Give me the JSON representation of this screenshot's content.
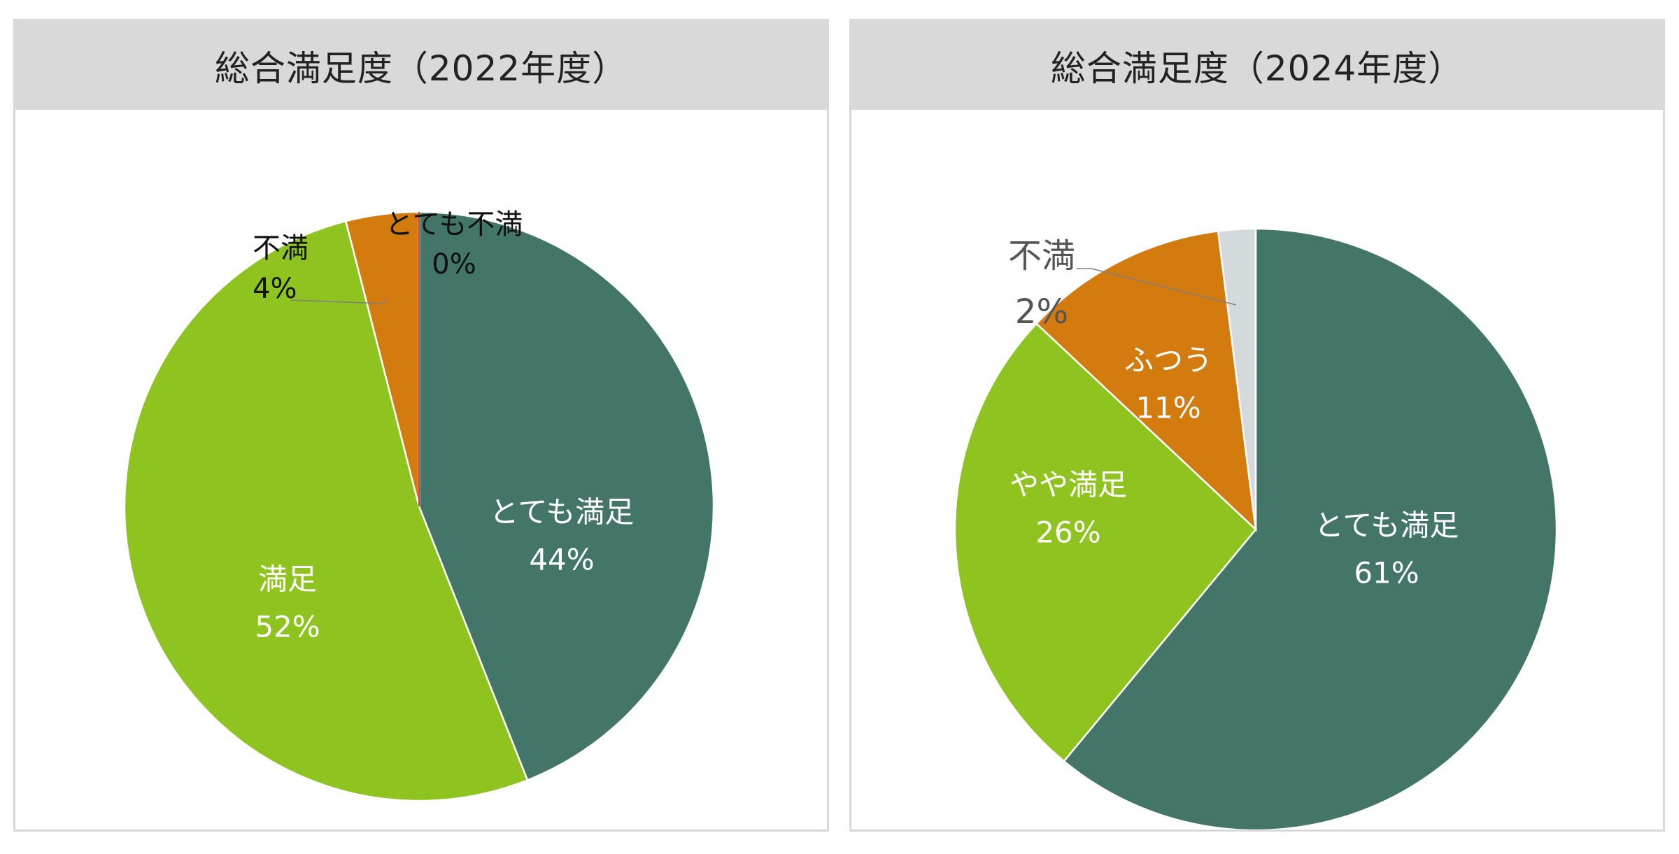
{
  "chart_data": [
    {
      "type": "pie",
      "title": "総合満足度（2022年度）",
      "slices": [
        {
          "label": "とても満足",
          "value": 44,
          "value_label": "44%",
          "color": "#437569",
          "label_placement": "inside"
        },
        {
          "label": "満足",
          "value": 52,
          "value_label": "52%",
          "color": "#8fc320",
          "label_placement": "inside"
        },
        {
          "label": "不満",
          "value": 4,
          "value_label": "4%",
          "color": "#d47b0f",
          "label_placement": "outside"
        },
        {
          "label": "とても不満",
          "value": 0,
          "value_label": "0%",
          "color": "#c00000",
          "label_placement": "outside"
        }
      ]
    },
    {
      "type": "pie",
      "title": "総合満足度（2024年度）",
      "slices": [
        {
          "label": "とても満足",
          "value": 61,
          "value_label": "61%",
          "color": "#437569",
          "label_placement": "inside"
        },
        {
          "label": "やや満足",
          "value": 26,
          "value_label": "26%",
          "color": "#8fc320",
          "label_placement": "inside"
        },
        {
          "label": "ふつう",
          "value": 11,
          "value_label": "11%",
          "color": "#d47b0f",
          "label_placement": "inside"
        },
        {
          "label": "不満",
          "value": 2,
          "value_label": "2%",
          "color": "#d4d9dc",
          "label_placement": "outside"
        }
      ]
    }
  ]
}
